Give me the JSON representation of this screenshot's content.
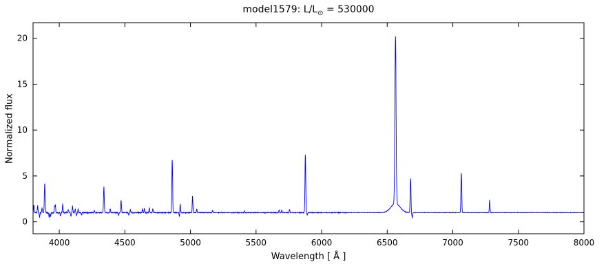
{
  "figure": {
    "title": {
      "pre": "model1579: L/L",
      "sub": "⊙",
      "post": " = 530000"
    },
    "xlabel": "Wavelength [ Å ]",
    "ylabel": "Normalized flux"
  },
  "chart_data": {
    "type": "line",
    "title": "model1579: L/L⊙ = 530000",
    "xlabel": "Wavelength [ Å ]",
    "ylabel": "Normalized flux",
    "xlim": [
      3800,
      8000
    ],
    "ylim": [
      -1.3,
      21.7
    ],
    "xticks": [
      4000,
      4500,
      5000,
      5500,
      6000,
      6500,
      7000,
      7500,
      8000
    ],
    "yticks": [
      0,
      5,
      10,
      15,
      20
    ],
    "line_color": "#0000ff",
    "axis_color": "#000000",
    "continuum": 1.0,
    "sample_step": 1,
    "emission_lines": [
      [
        3806,
        0.85,
        2.5
      ],
      [
        3835,
        0.75,
        2.5
      ],
      [
        3868,
        0.5,
        2.5
      ],
      [
        3889,
        3.2,
        3
      ],
      [
        3964,
        0.65,
        2.5
      ],
      [
        3970,
        0.75,
        2.5
      ],
      [
        4026,
        0.95,
        2.5
      ],
      [
        4069,
        0.35,
        2.5
      ],
      [
        4101,
        0.65,
        3
      ],
      [
        4121,
        0.4,
        2.5
      ],
      [
        4144,
        0.35,
        2.5
      ],
      [
        4267,
        0.25,
        2.5
      ],
      [
        4340,
        2.8,
        3
      ],
      [
        4388,
        0.4,
        2.5
      ],
      [
        4471,
        1.3,
        3
      ],
      [
        4542,
        0.3,
        2.5
      ],
      [
        4634,
        0.4,
        2.5
      ],
      [
        4649,
        0.45,
        2.5
      ],
      [
        4686,
        0.5,
        2.5
      ],
      [
        4713,
        0.4,
        2.5
      ],
      [
        4861,
        5.7,
        3
      ],
      [
        4922,
        0.95,
        2.5
      ],
      [
        5016,
        1.8,
        2.5
      ],
      [
        5048,
        0.4,
        2.5
      ],
      [
        5169,
        0.25,
        2.5
      ],
      [
        5412,
        0.18,
        2.5
      ],
      [
        5676,
        0.3,
        2.5
      ],
      [
        5696,
        0.28,
        2.5
      ],
      [
        5755,
        0.35,
        2.5
      ],
      [
        5876,
        6.3,
        3
      ],
      [
        6563,
        18.2,
        4.5
      ],
      [
        6563,
        1.0,
        35
      ],
      [
        6678,
        3.7,
        3
      ],
      [
        7065,
        4.3,
        3
      ],
      [
        7281,
        1.4,
        2.5
      ]
    ],
    "absorption_lines": [
      [
        3850,
        0.5,
        2.5
      ],
      [
        3923,
        0.5,
        2.5
      ],
      [
        3933,
        0.45,
        2.5
      ],
      [
        4009,
        0.35,
        2.5
      ],
      [
        4089,
        0.4,
        2.5
      ],
      [
        4132,
        0.35,
        2.5
      ],
      [
        4170,
        0.3,
        2.5
      ],
      [
        4452,
        0.28,
        2.5
      ],
      [
        4530,
        0.3,
        2.5
      ],
      [
        4916,
        0.4,
        2.5
      ],
      [
        5890,
        0.25,
        2.5
      ],
      [
        6691,
        0.55,
        3
      ]
    ],
    "noise_regions": [
      [
        3800,
        4250,
        0.055
      ],
      [
        4250,
        5000,
        0.04
      ],
      [
        5000,
        6200,
        0.028
      ],
      [
        6200,
        8000,
        0.018
      ]
    ]
  }
}
